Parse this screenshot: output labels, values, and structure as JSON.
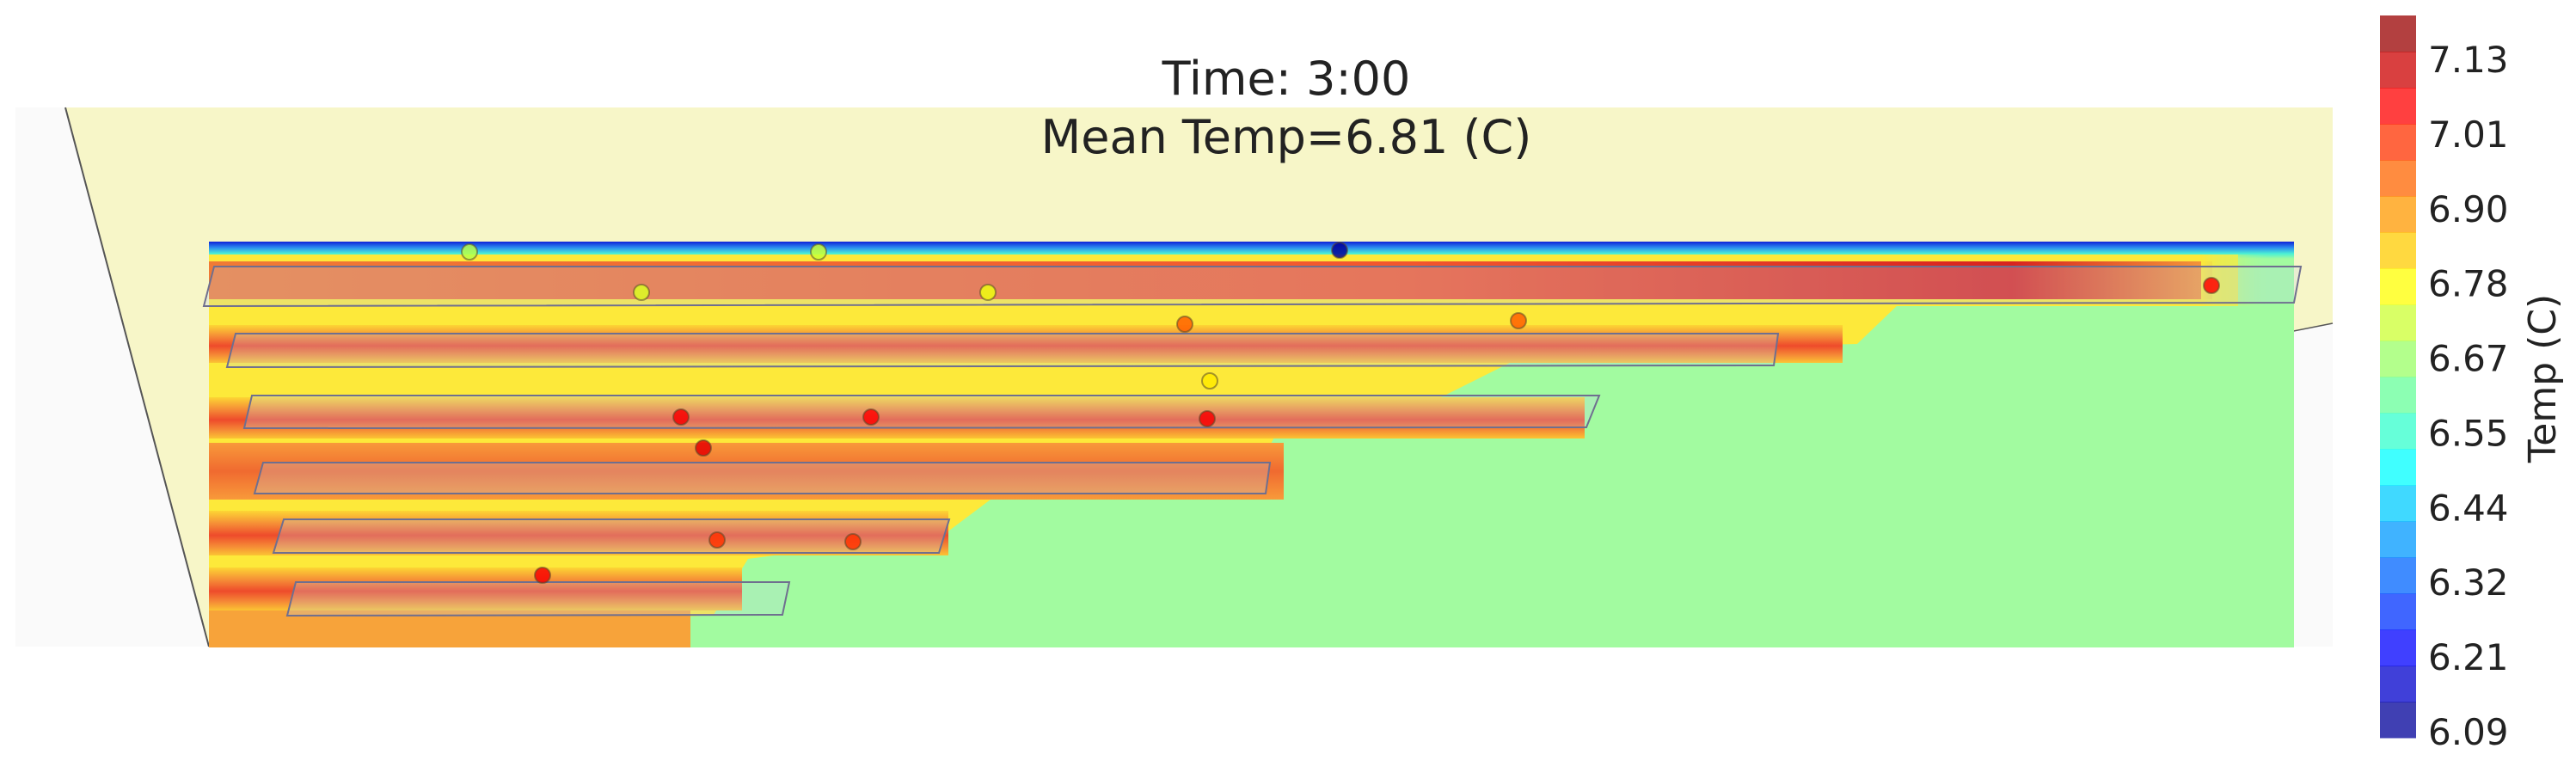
{
  "title": {
    "time_line": "Time: 3:00",
    "mean_line": "Mean Temp=6.81 (C)"
  },
  "chart_data": {
    "type": "heatmap",
    "title": "Time: 3:00",
    "subtitle": "Mean Temp=6.81 (C)",
    "mean_temp": 6.81,
    "time": "3:00",
    "colorbar": {
      "label": "Temp (C)",
      "min": 6.09,
      "max": 7.19,
      "ticks": [
        "7.13",
        "7.01",
        "6.90",
        "6.78",
        "6.67",
        "6.55",
        "6.44",
        "6.32",
        "6.21",
        "6.09"
      ]
    },
    "colors": {
      "background_field": "#a2fba0",
      "frame_fill": "#f7f6c8",
      "cold_edge": "#1a1ed6",
      "hot_core": "#e63a2e"
    },
    "bands": [
      {
        "row": 1,
        "peak_temp": 7.19
      },
      {
        "row": 2,
        "peak_temp": 7.06
      },
      {
        "row": 3,
        "peak_temp": 7.04
      },
      {
        "row": 4,
        "peak_temp": 6.98
      },
      {
        "row": 5,
        "peak_temp": 7.02
      },
      {
        "row": 6,
        "peak_temp": 7.03
      }
    ],
    "sensors": [
      {
        "id": "s1",
        "temp": 6.7
      },
      {
        "id": "s2",
        "temp": 6.72
      },
      {
        "id": "s3",
        "temp": 6.12
      },
      {
        "id": "s4",
        "temp": 6.74
      },
      {
        "id": "s5",
        "temp": 6.76
      },
      {
        "id": "s6",
        "temp": 7.05
      },
      {
        "id": "s7",
        "temp": 6.95
      },
      {
        "id": "s8",
        "temp": 6.95
      },
      {
        "id": "s9",
        "temp": 6.8
      },
      {
        "id": "s10",
        "temp": 7.06
      },
      {
        "id": "s11",
        "temp": 7.05
      },
      {
        "id": "s12",
        "temp": 7.06
      },
      {
        "id": "s13",
        "temp": 7.08
      },
      {
        "id": "s14",
        "temp": 7.0
      },
      {
        "id": "s15",
        "temp": 7.0
      },
      {
        "id": "s16",
        "temp": 7.06
      }
    ]
  }
}
